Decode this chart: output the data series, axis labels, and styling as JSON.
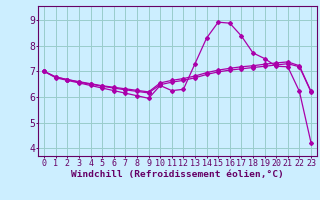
{
  "xlabel": "Windchill (Refroidissement éolien,°C)",
  "bg_color": "#cceeff",
  "line_color": "#aa00aa",
  "grid_color": "#99cccc",
  "axis_color": "#660066",
  "spine_color": "#660066",
  "xlim": [
    -0.5,
    23.5
  ],
  "ylim": [
    3.7,
    9.55
  ],
  "xticks": [
    0,
    1,
    2,
    3,
    4,
    5,
    6,
    7,
    8,
    9,
    10,
    11,
    12,
    13,
    14,
    15,
    16,
    17,
    18,
    19,
    20,
    21,
    22,
    23
  ],
  "yticks": [
    4,
    5,
    6,
    7,
    8,
    9
  ],
  "series1_x": [
    0,
    1,
    2,
    3,
    4,
    5,
    6,
    7,
    8,
    9,
    10,
    11,
    12,
    13,
    14,
    15,
    16,
    17,
    18,
    19,
    20,
    21,
    22,
    23
  ],
  "series1_y": [
    7.0,
    6.75,
    6.65,
    6.55,
    6.45,
    6.35,
    6.25,
    6.15,
    6.05,
    5.95,
    6.45,
    6.25,
    6.3,
    7.3,
    8.3,
    8.92,
    8.88,
    8.38,
    7.72,
    7.5,
    7.2,
    7.18,
    6.22,
    4.22
  ],
  "series2_x": [
    0,
    1,
    2,
    3,
    4,
    5,
    6,
    7,
    8,
    9,
    10,
    11,
    12,
    13,
    14,
    15,
    16,
    17,
    18,
    19,
    20,
    21,
    22,
    23
  ],
  "series2_y": [
    7.0,
    6.78,
    6.68,
    6.6,
    6.52,
    6.44,
    6.38,
    6.32,
    6.26,
    6.2,
    6.55,
    6.65,
    6.72,
    6.82,
    6.95,
    7.05,
    7.12,
    7.18,
    7.22,
    7.28,
    7.33,
    7.37,
    7.22,
    6.22
  ],
  "series3_x": [
    0,
    1,
    2,
    3,
    4,
    5,
    6,
    7,
    8,
    9,
    10,
    11,
    12,
    13,
    14,
    15,
    16,
    17,
    18,
    19,
    20,
    21,
    22,
    23
  ],
  "series3_y": [
    7.0,
    6.78,
    6.68,
    6.58,
    6.5,
    6.42,
    6.35,
    6.28,
    6.22,
    6.16,
    6.48,
    6.58,
    6.65,
    6.75,
    6.88,
    6.98,
    7.05,
    7.1,
    7.15,
    7.2,
    7.25,
    7.3,
    7.18,
    6.2
  ],
  "marker": "D",
  "markersize": 2.0,
  "linewidth": 0.9,
  "xlabel_fontsize": 6.8,
  "tick_fontsize": 6.0
}
